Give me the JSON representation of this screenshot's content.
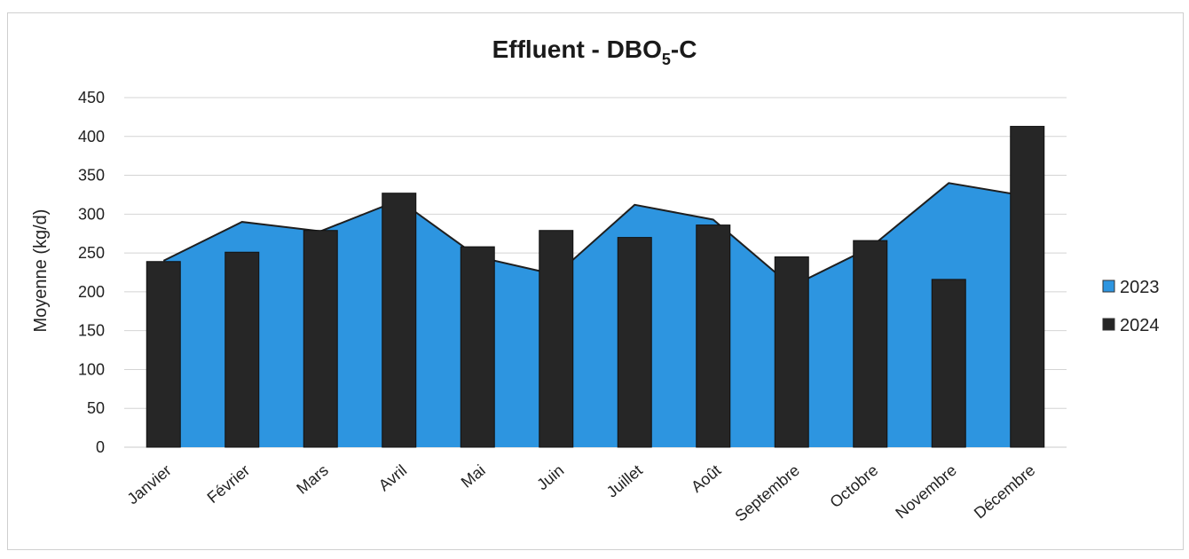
{
  "chart_data": {
    "type": "bar",
    "title": {
      "main": "Effluent - DBO",
      "subscript": "5",
      "suffix": "-C"
    },
    "xlabel": "",
    "ylabel": "Moyenne (kg/d)",
    "ylim": [
      0,
      450
    ],
    "yticks": [
      0,
      50,
      100,
      150,
      200,
      250,
      300,
      350,
      400,
      450
    ],
    "grid": true,
    "legend_position": "right",
    "categories": [
      "Janvier",
      "Février",
      "Mars",
      "Avril",
      "Mai",
      "Juin",
      "Juillet",
      "Août",
      "Septembre",
      "Octobre",
      "Novembre",
      "Décembre"
    ],
    "series": [
      {
        "name": "2023",
        "type": "area",
        "color": "#2d95e0",
        "values": [
          240,
          290,
          278,
          318,
          245,
          222,
          312,
          293,
          207,
          257,
          340,
          323
        ]
      },
      {
        "name": "2024",
        "type": "bar",
        "color": "#262626",
        "values": [
          239,
          251,
          279,
          327,
          258,
          279,
          270,
          286,
          245,
          266,
          216,
          413
        ]
      }
    ]
  }
}
